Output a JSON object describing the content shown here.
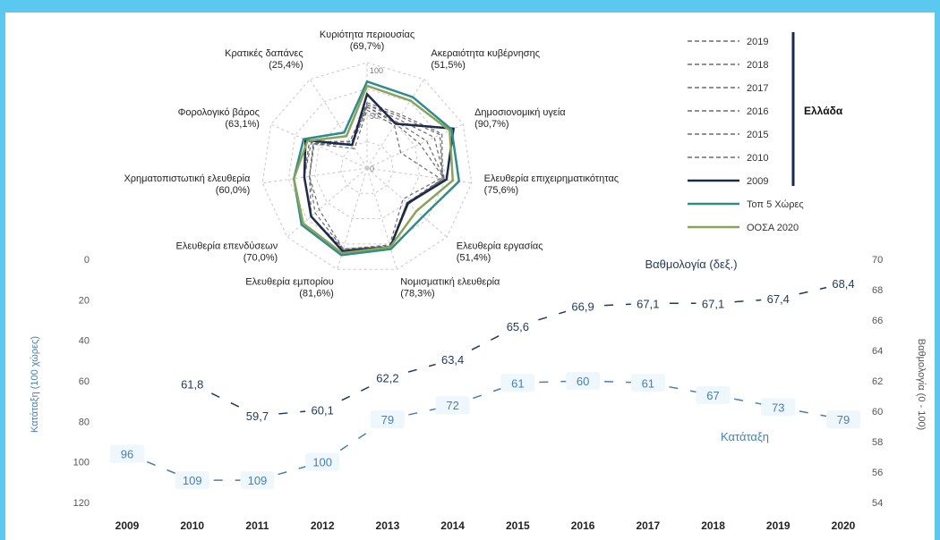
{
  "colors": {
    "frame": "#5bc8f0",
    "line_chart_ranking": "#1f3a5f",
    "line_chart_score": "#4a7fb0",
    "radar_2009": "#1c2b4a",
    "radar_top_countries": "#2e8c8c",
    "radar_oecd": "#8aa35a",
    "radar_years_dashed": "#6b6b6b",
    "grid": "#c8c8c8"
  },
  "chart_data": [
    {
      "type": "line",
      "x": [
        2009,
        2010,
        2011,
        2012,
        2013,
        2014,
        2015,
        2016,
        2017,
        2018,
        2019,
        2020
      ],
      "x_tick_labels": [
        "2009",
        "2010",
        "2011",
        "2012",
        "2013",
        "2014",
        "2015",
        "2016",
        "2017",
        "2018",
        "2019",
        "2020"
      ],
      "left_axis": {
        "label": "Κατάταξη (100 χώρες)",
        "range": [
          0,
          120
        ],
        "inverted": true,
        "ticks": [
          "0",
          "20",
          "40",
          "60",
          "80",
          "100",
          "120"
        ]
      },
      "right_axis": {
        "label": "Βαθμολογία (0 - 100)",
        "range": [
          54,
          70
        ],
        "ticks": [
          "70",
          "68",
          "66",
          "64",
          "62",
          "60",
          "58",
          "56",
          "54"
        ]
      },
      "series": [
        {
          "name": "Βαθμολογία (δεξ.)",
          "axis": "right",
          "x": [
            2010,
            2011,
            2012,
            2013,
            2014,
            2015,
            2016,
            2017,
            2018,
            2019,
            2020
          ],
          "values": [
            61.8,
            59.7,
            60.1,
            62.2,
            63.4,
            65.6,
            66.9,
            67.1,
            67.1,
            67.4,
            68.4
          ],
          "labels": [
            "61,8",
            "59,7",
            "60,1",
            "62,2",
            "63,4",
            "65,6",
            "66,9",
            "67,1",
            "67,1",
            "67,4",
            "68,4"
          ]
        },
        {
          "name": "Κατάταξη",
          "axis": "left",
          "x": [
            2009,
            2010,
            2011,
            2012,
            2013,
            2014,
            2015,
            2016,
            2017,
            2018,
            2019,
            2020
          ],
          "values": [
            96,
            109,
            109,
            100,
            79,
            72,
            61,
            60,
            61,
            67,
            73,
            79
          ],
          "labels": [
            "96",
            "109",
            "109",
            "100",
            "79",
            "72",
            "61",
            "60",
            "61",
            "67",
            "73",
            "79"
          ]
        }
      ]
    },
    {
      "type": "radar",
      "axes": [
        "Κυριότητα περιουσίας",
        "Ακεραιότητα κυβέρνησης",
        "Δημοσιονομική υγεία",
        "Ελευθερία επιχειρηματικότητας",
        "Ελευθερία εργασίας",
        "Νομισματική ελευθερία",
        "Ελευθερία εμπορίου",
        "Ελευθερία επενδύσεων",
        "Χρηματοπιστωτική ελευθερία",
        "Φορολογικό βάρος",
        "Κρατικές δαπάνες"
      ],
      "axis_labels": [
        {
          "text": "Κυριότητα περιουσίας",
          "value_label": "(69,7%)"
        },
        {
          "text": "Ακεραιότητα κυβέρνησης",
          "value_label": "(51,5%)"
        },
        {
          "text": "Δημοσιονομική υγεία",
          "value_label": "(90,7%)"
        },
        {
          "text": "Ελευθερία επιχειρηματικότητας",
          "value_label": "(75,6%)"
        },
        {
          "text": "Ελευθερία εργασίας",
          "value_label": "(51,4%)"
        },
        {
          "text": "Νομισματική ελευθερία",
          "value_label": "(78,3%)"
        },
        {
          "text": "Ελευθερία εμπορίου",
          "value_label": "(81,6%)"
        },
        {
          "text": "Ελευθερία επενδύσεων",
          "value_label": "(70,0%)"
        },
        {
          "text": "Χρηματοπιστωτική ελευθερία",
          "value_label": "(60,0%)"
        },
        {
          "text": "Φορολογικό βάρος",
          "value_label": "(63,1%)"
        },
        {
          "text": "Κρατικές δαπάνες",
          "value_label": "(25,4%)"
        }
      ],
      "range": [
        0,
        100
      ],
      "ring_labels": [
        "0",
        "50",
        "100"
      ],
      "series": [
        {
          "name": "2019",
          "style": "dashed",
          "values": [
            62,
            60,
            78,
            72,
            50,
            80,
            82,
            70,
            60,
            60,
            30
          ]
        },
        {
          "name": "2018",
          "style": "dashed",
          "values": [
            60,
            58,
            76,
            72,
            52,
            78,
            82,
            70,
            60,
            60,
            30
          ]
        },
        {
          "name": "2017",
          "style": "dashed",
          "values": [
            60,
            55,
            70,
            74,
            52,
            78,
            82,
            70,
            60,
            58,
            28
          ]
        },
        {
          "name": "2016",
          "style": "dashed",
          "values": [
            58,
            52,
            62,
            74,
            50,
            78,
            80,
            70,
            55,
            56,
            26
          ]
        },
        {
          "name": "2015",
          "style": "dashed",
          "values": [
            58,
            50,
            55,
            74,
            50,
            77,
            80,
            65,
            55,
            56,
            26
          ]
        },
        {
          "name": "2010",
          "style": "dashed",
          "values": [
            55,
            48,
            35,
            70,
            45,
            76,
            80,
            60,
            55,
            55,
            22
          ]
        },
        {
          "name": "2009",
          "style": "solid",
          "values": [
            70,
            50,
            90,
            76,
            51,
            78,
            82,
            70,
            60,
            64,
            26
          ]
        },
        {
          "name": "Τοπ 5 Χώρες",
          "style": "solid",
          "values": [
            82,
            80,
            88,
            88,
            70,
            80,
            86,
            82,
            70,
            66,
            40
          ]
        },
        {
          "name": "ΟΟΣΑ 2020",
          "style": "solid",
          "values": [
            78,
            76,
            86,
            82,
            62,
            78,
            84,
            80,
            70,
            62,
            36
          ]
        }
      ],
      "legend": {
        "placement": "right",
        "group_label": "Ελλάδα",
        "entries": [
          "2019",
          "2018",
          "2017",
          "2016",
          "2015",
          "2010",
          "2009",
          "Τοπ 5 Χώρες",
          "ΟΟΣΑ 2020"
        ]
      }
    }
  ]
}
